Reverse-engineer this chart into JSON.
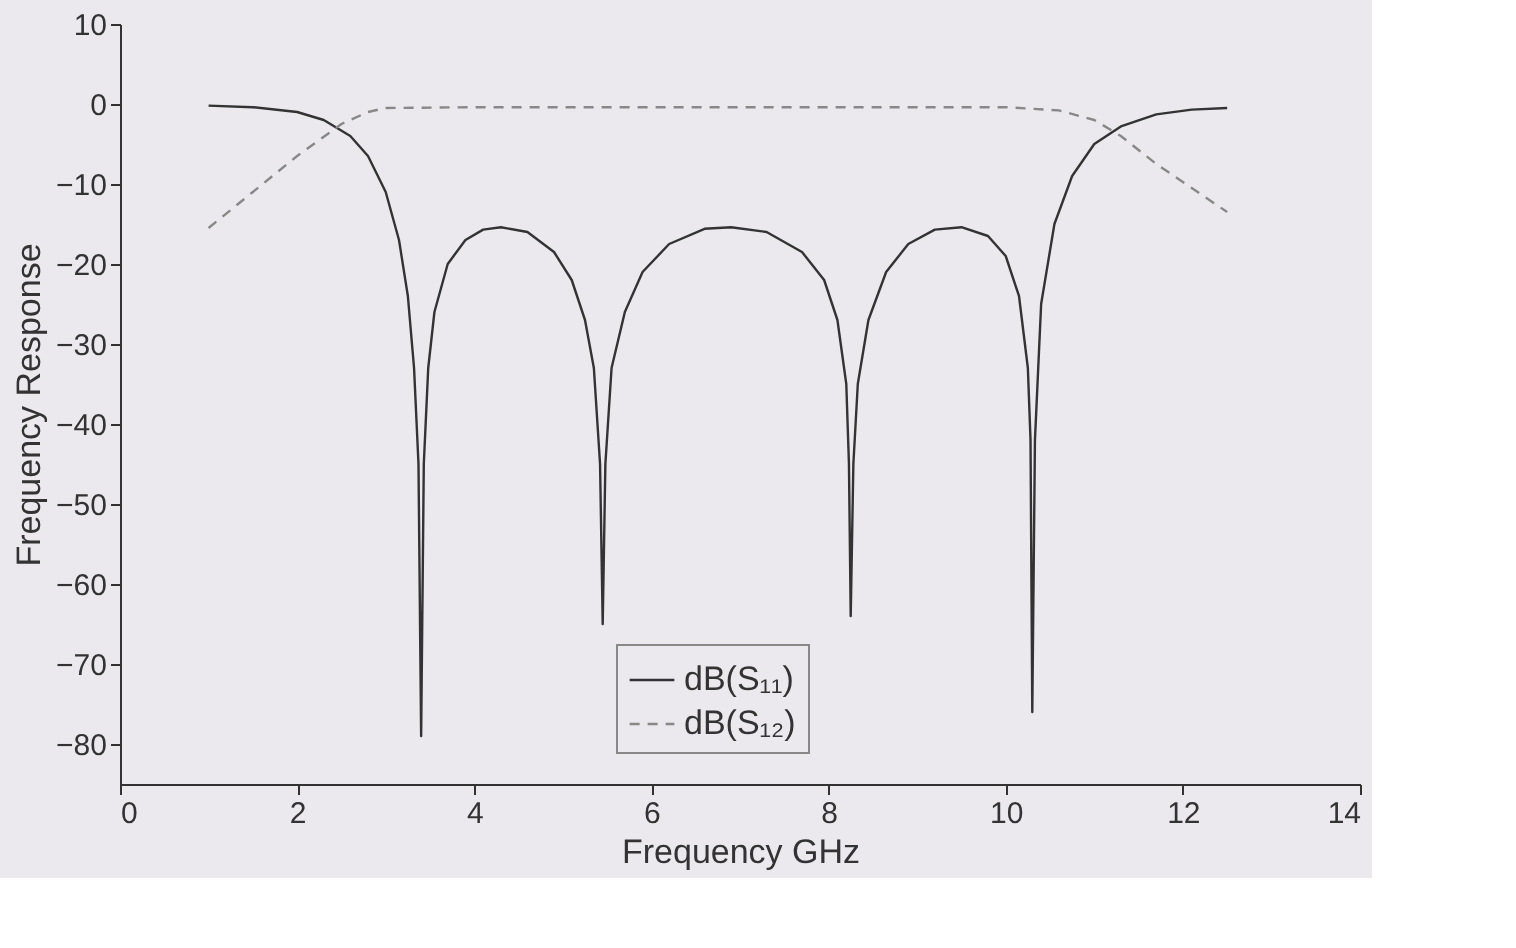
{
  "chart_data": {
    "type": "line",
    "xlabel": "Frequency GHz",
    "ylabel": "Frequency Response",
    "xlim": [
      0,
      14
    ],
    "ylim": [
      -85,
      10
    ],
    "xticks": [
      0,
      2,
      4,
      6,
      8,
      10,
      12,
      14
    ],
    "yticks": [
      -80,
      -70,
      -60,
      -50,
      -40,
      -30,
      -20,
      -10,
      0,
      10
    ],
    "grid": false,
    "legend": "bottom",
    "marker": "none",
    "series": [
      {
        "name": "dB(S₁₁)",
        "color": "#333333",
        "line_style": "solid",
        "x": [
          1,
          1.5,
          2,
          2.3,
          2.6,
          2.8,
          3.0,
          3.15,
          3.25,
          3.32,
          3.37,
          3.4,
          3.43,
          3.48,
          3.55,
          3.7,
          3.9,
          4.1,
          4.3,
          4.6,
          4.9,
          5.1,
          5.25,
          5.35,
          5.42,
          5.45,
          5.48,
          5.55,
          5.7,
          5.9,
          6.2,
          6.6,
          6.9,
          7.3,
          7.7,
          7.95,
          8.1,
          8.2,
          8.23,
          8.25,
          8.28,
          8.33,
          8.45,
          8.65,
          8.9,
          9.2,
          9.5,
          9.8,
          10.0,
          10.15,
          10.25,
          10.28,
          10.3,
          10.33,
          10.4,
          10.55,
          10.75,
          11.0,
          11.3,
          11.7,
          12.1,
          12.5
        ],
        "values": [
          -0.2,
          -0.4,
          -1,
          -2,
          -4,
          -6.5,
          -11,
          -17,
          -24,
          -33,
          -45,
          -79,
          -45,
          -33,
          -26,
          -20,
          -17,
          -15.7,
          -15.4,
          -16,
          -18.5,
          -22,
          -27,
          -33,
          -45,
          -65,
          -45,
          -33,
          -26,
          -21,
          -17.5,
          -15.6,
          -15.4,
          -16,
          -18.5,
          -22,
          -27,
          -35,
          -45,
          -64,
          -45,
          -35,
          -27,
          -21,
          -17.5,
          -15.7,
          -15.4,
          -16.5,
          -19,
          -24,
          -33,
          -42,
          -76,
          -42,
          -25,
          -15,
          -9,
          -5,
          -2.8,
          -1.3,
          -0.7,
          -0.5
        ]
      },
      {
        "name": "dB(S₁₂)",
        "color": "#888888",
        "line_style": "dashed",
        "x": [
          1,
          1.5,
          2,
          2.5,
          2.8,
          3.0,
          4,
          6,
          8,
          10,
          10.6,
          11,
          11.3,
          11.7,
          12.1,
          12.5
        ],
        "values": [
          -15.5,
          -11,
          -6.5,
          -2.5,
          -1,
          -0.5,
          -0.4,
          -0.4,
          -0.4,
          -0.4,
          -0.8,
          -2,
          -4,
          -7.5,
          -10.5,
          -13.5
        ]
      }
    ]
  }
}
